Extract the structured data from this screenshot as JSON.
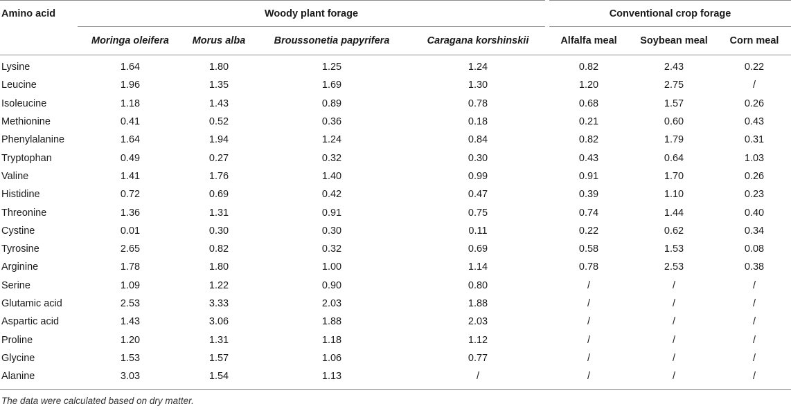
{
  "table": {
    "corner_header": "Amino acid",
    "groups": [
      {
        "label": "Woody plant forage"
      },
      {
        "label": "Conventional crop forage"
      }
    ],
    "columns": [
      {
        "label": "Moringa oleifera",
        "italic": true
      },
      {
        "label": "Morus alba",
        "italic": true
      },
      {
        "label": "Broussonetia papyrifera",
        "italic": true
      },
      {
        "label": "Caragana korshinskii",
        "italic": true
      },
      {
        "label": "Alfalfa meal",
        "italic": false
      },
      {
        "label": "Soybean meal",
        "italic": false
      },
      {
        "label": "Corn meal",
        "italic": false
      }
    ],
    "rows": [
      {
        "name": "Lysine",
        "values": [
          "1.64",
          "1.80",
          "1.25",
          "1.24",
          "0.82",
          "2.43",
          "0.22"
        ]
      },
      {
        "name": "Leucine",
        "values": [
          "1.96",
          "1.35",
          "1.69",
          "1.30",
          "1.20",
          "2.75",
          "/"
        ]
      },
      {
        "name": "Isoleucine",
        "values": [
          "1.18",
          "1.43",
          "0.89",
          "0.78",
          "0.68",
          "1.57",
          "0.26"
        ]
      },
      {
        "name": "Methionine",
        "values": [
          "0.41",
          "0.52",
          "0.36",
          "0.18",
          "0.21",
          "0.60",
          "0.43"
        ]
      },
      {
        "name": "Phenylalanine",
        "values": [
          "1.64",
          "1.94",
          "1.24",
          "0.84",
          "0.82",
          "1.79",
          "0.31"
        ]
      },
      {
        "name": "Tryptophan",
        "values": [
          "0.49",
          "0.27",
          "0.32",
          "0.30",
          "0.43",
          "0.64",
          "1.03"
        ]
      },
      {
        "name": "Valine",
        "values": [
          "1.41",
          "1.76",
          "1.40",
          "0.99",
          "0.91",
          "1.70",
          "0.26"
        ]
      },
      {
        "name": "Histidine",
        "values": [
          "0.72",
          "0.69",
          "0.42",
          "0.47",
          "0.39",
          "1.10",
          "0.23"
        ]
      },
      {
        "name": "Threonine",
        "values": [
          "1.36",
          "1.31",
          "0.91",
          "0.75",
          "0.74",
          "1.44",
          "0.40"
        ]
      },
      {
        "name": "Cystine",
        "values": [
          "0.01",
          "0.30",
          "0.30",
          "0.11",
          "0.22",
          "0.62",
          "0.34"
        ]
      },
      {
        "name": "Tyrosine",
        "values": [
          "2.65",
          "0.82",
          "0.32",
          "0.69",
          "0.58",
          "1.53",
          "0.08"
        ]
      },
      {
        "name": "Arginine",
        "values": [
          "1.78",
          "1.80",
          "1.00",
          "1.14",
          "0.78",
          "2.53",
          "0.38"
        ]
      },
      {
        "name": "Serine",
        "values": [
          "1.09",
          "1.22",
          "0.90",
          "0.80",
          "/",
          "/",
          "/"
        ]
      },
      {
        "name": "Glutamic acid",
        "values": [
          "2.53",
          "3.33",
          "2.03",
          "1.88",
          "/",
          "/",
          "/"
        ]
      },
      {
        "name": "Aspartic acid",
        "values": [
          "1.43",
          "3.06",
          "1.88",
          "2.03",
          "/",
          "/",
          "/"
        ]
      },
      {
        "name": "Proline",
        "values": [
          "1.20",
          "1.31",
          "1.18",
          "1.12",
          "/",
          "/",
          "/"
        ]
      },
      {
        "name": "Glycine",
        "values": [
          "1.53",
          "1.57",
          "1.06",
          "0.77",
          "/",
          "/",
          "/"
        ]
      },
      {
        "name": "Alanine",
        "values": [
          "3.03",
          "1.54",
          "1.13",
          "/",
          "/",
          "/",
          "/"
        ]
      }
    ],
    "footnote": "The data were calculated based on dry matter."
  }
}
